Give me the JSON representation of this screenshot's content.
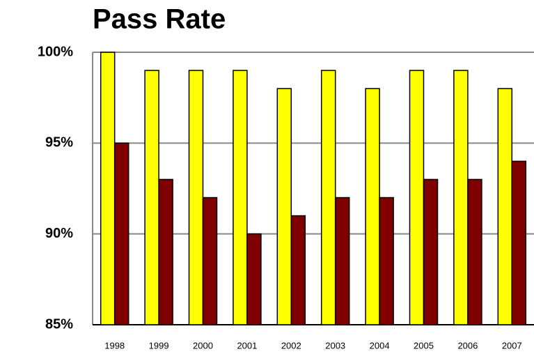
{
  "chart_data": {
    "type": "bar",
    "title": "Pass Rate",
    "categories": [
      "1998",
      "1999",
      "2000",
      "2001",
      "2002",
      "2003",
      "2004",
      "2005",
      "2006",
      "2007"
    ],
    "series": [
      {
        "color": "#ffff00",
        "values": [
          100,
          99,
          99,
          99,
          98,
          99,
          98,
          99,
          99,
          98
        ]
      },
      {
        "color": "#800000",
        "values": [
          95,
          93,
          92,
          90,
          91,
          92,
          92,
          93,
          93,
          94
        ]
      }
    ],
    "ylim": [
      85,
      100
    ],
    "yticks": [
      {
        "value": 85,
        "label": "85%"
      },
      {
        "value": 90,
        "label": "90%"
      },
      {
        "value": 95,
        "label": "95%"
      },
      {
        "value": 100,
        "label": "100%"
      }
    ],
    "grid": true
  }
}
